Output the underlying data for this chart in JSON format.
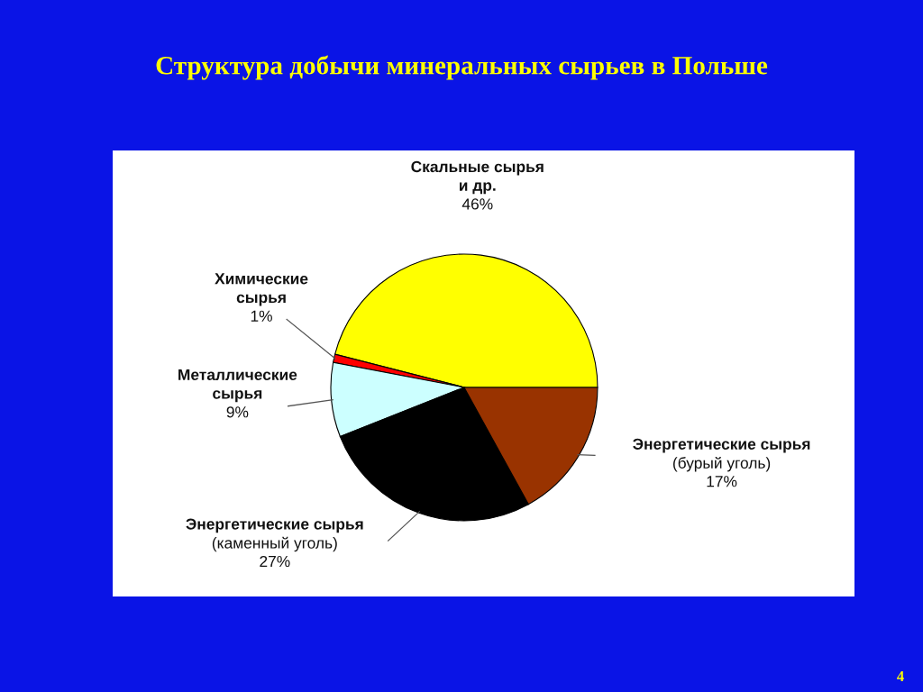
{
  "chart_data": {
    "type": "pie",
    "title": "Структура добычи минеральных сырьев в Польше",
    "categories": [
      "Скальные сырья\nи др.",
      "Химические\nсырья",
      "Металлические\nсырья",
      "Энергетические сырья\n(каменный уголь)",
      "Энергетические сырья\n(бурый уголь)"
    ],
    "values": [
      46,
      1,
      9,
      27,
      17
    ],
    "colors": [
      "#ffff00",
      "#ff0000",
      "#ccffff",
      "#000000",
      "#993300"
    ],
    "value_labels": [
      "46%",
      "1%",
      "9%",
      "27%",
      "17%"
    ],
    "legend": false,
    "annotations": [
      "4"
    ]
  }
}
